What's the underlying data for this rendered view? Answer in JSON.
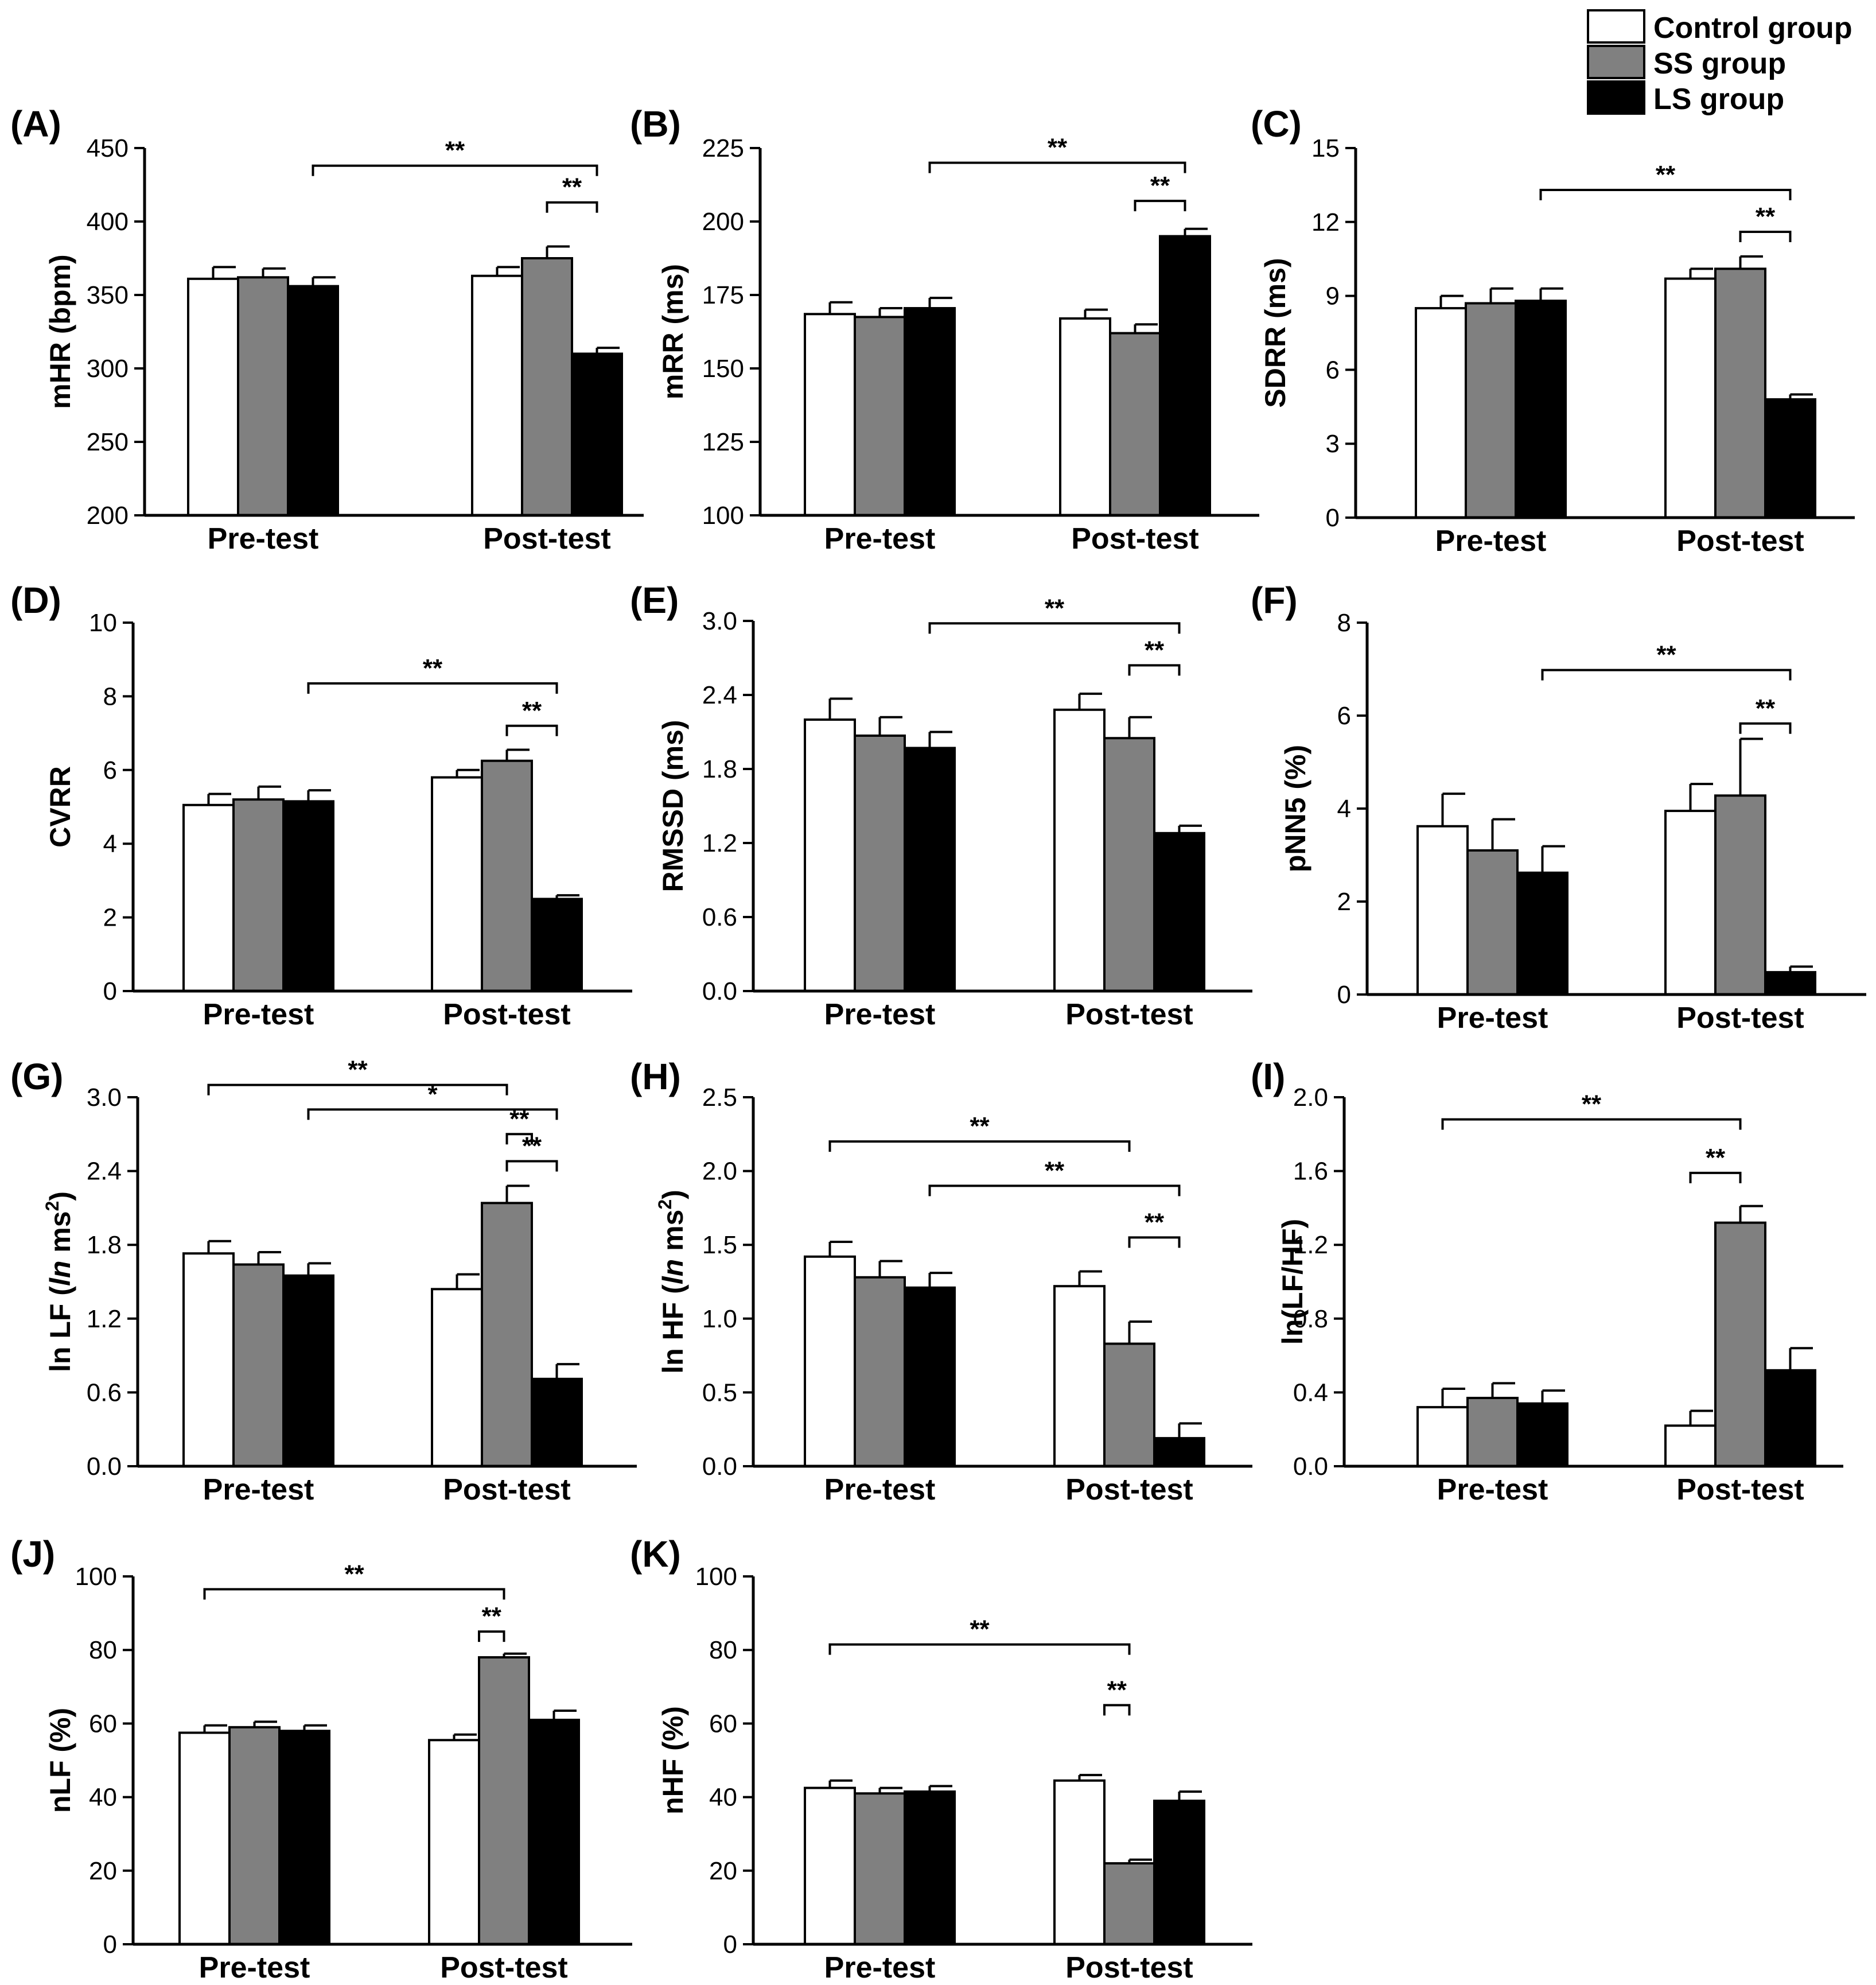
{
  "legend": {
    "entries": [
      {
        "label": "Control group",
        "color": "#ffffff"
      },
      {
        "label": "SS group",
        "color": "#808080"
      },
      {
        "label": "LS group",
        "color": "#000000"
      }
    ]
  },
  "chart_data": [
    {
      "id": "A",
      "panel_label": "(A)",
      "type": "bar",
      "ylabel": "mHR (bpm)",
      "yticks": [
        "200",
        "250",
        "300",
        "350",
        "400",
        "450"
      ],
      "ylim": [
        200,
        450
      ],
      "categories": [
        "Pre-test",
        "Post-test"
      ],
      "series": [
        {
          "name": "Control group",
          "values": [
            361,
            363
          ],
          "errors": [
            8,
            6
          ]
        },
        {
          "name": "SS group",
          "values": [
            362,
            375
          ],
          "errors": [
            6,
            8
          ]
        },
        {
          "name": "LS group",
          "values": [
            356,
            310
          ],
          "errors": [
            6,
            4
          ]
        }
      ],
      "brackets": [
        {
          "from": [
            0,
            2
          ],
          "to": [
            1,
            2
          ],
          "label": "**",
          "y": 438
        },
        {
          "from": [
            1,
            1
          ],
          "to": [
            1,
            2
          ],
          "label": "**",
          "y": 413
        }
      ]
    },
    {
      "id": "B",
      "panel_label": "(B)",
      "type": "bar",
      "ylabel": "mRR (ms)",
      "yticks": [
        "100",
        "125",
        "150",
        "175",
        "200",
        "225"
      ],
      "ylim": [
        100,
        225
      ],
      "categories": [
        "Pre-test",
        "Post-test"
      ],
      "series": [
        {
          "name": "Control group",
          "values": [
            168.5,
            167
          ],
          "errors": [
            4,
            3
          ]
        },
        {
          "name": "SS group",
          "values": [
            167.5,
            162
          ],
          "errors": [
            3,
            3
          ]
        },
        {
          "name": "LS group",
          "values": [
            170.5,
            195
          ],
          "errors": [
            3.5,
            2.5
          ]
        }
      ],
      "brackets": [
        {
          "from": [
            0,
            2
          ],
          "to": [
            1,
            2
          ],
          "label": "**",
          "y": 220
        },
        {
          "from": [
            1,
            1
          ],
          "to": [
            1,
            2
          ],
          "label": "**",
          "y": 207
        }
      ]
    },
    {
      "id": "C",
      "panel_label": "(C)",
      "type": "bar",
      "ylabel": "SDRR (ms)",
      "yticks": [
        "0",
        "3",
        "6",
        "9",
        "12",
        "15"
      ],
      "ylim": [
        0,
        15
      ],
      "categories": [
        "Pre-test",
        "Post-test"
      ],
      "series": [
        {
          "name": "Control group",
          "values": [
            8.5,
            9.7
          ],
          "errors": [
            0.5,
            0.4
          ]
        },
        {
          "name": "SS group",
          "values": [
            8.7,
            10.1
          ],
          "errors": [
            0.6,
            0.5
          ]
        },
        {
          "name": "LS group",
          "values": [
            8.8,
            4.8
          ],
          "errors": [
            0.5,
            0.2
          ]
        }
      ],
      "brackets": [
        {
          "from": [
            0,
            2
          ],
          "to": [
            1,
            2
          ],
          "label": "**",
          "y": 13.3
        },
        {
          "from": [
            1,
            1
          ],
          "to": [
            1,
            2
          ],
          "label": "**",
          "y": 11.6
        }
      ]
    },
    {
      "id": "D",
      "panel_label": "(D)",
      "type": "bar",
      "ylabel": "CVRR",
      "yticks": [
        "0",
        "2",
        "4",
        "6",
        "8",
        "10"
      ],
      "ylim": [
        0,
        10
      ],
      "categories": [
        "Pre-test",
        "Post-test"
      ],
      "series": [
        {
          "name": "Control group",
          "values": [
            5.05,
            5.8
          ],
          "errors": [
            0.3,
            0.2
          ]
        },
        {
          "name": "SS group",
          "values": [
            5.2,
            6.25
          ],
          "errors": [
            0.35,
            0.3
          ]
        },
        {
          "name": "LS group",
          "values": [
            5.15,
            2.5
          ],
          "errors": [
            0.3,
            0.1
          ]
        }
      ],
      "brackets": [
        {
          "from": [
            0,
            2
          ],
          "to": [
            1,
            2
          ],
          "label": "**",
          "y": 8.35
        },
        {
          "from": [
            1,
            1
          ],
          "to": [
            1,
            2
          ],
          "label": "**",
          "y": 7.2
        }
      ]
    },
    {
      "id": "E",
      "panel_label": "(E)",
      "type": "bar",
      "ylabel": "RMSSD (ms)",
      "yticks": [
        "0.0",
        "0.6",
        "1.2",
        "1.8",
        "2.4",
        "3.0"
      ],
      "ylim": [
        0,
        3.0
      ],
      "categories": [
        "Pre-test",
        "Post-test"
      ],
      "series": [
        {
          "name": "Control group",
          "values": [
            2.2,
            2.28
          ],
          "errors": [
            0.17,
            0.13
          ]
        },
        {
          "name": "SS group",
          "values": [
            2.07,
            2.05
          ],
          "errors": [
            0.15,
            0.17
          ]
        },
        {
          "name": "LS group",
          "values": [
            1.97,
            1.28
          ],
          "errors": [
            0.13,
            0.06
          ]
        }
      ],
      "brackets": [
        {
          "from": [
            0,
            2
          ],
          "to": [
            1,
            2
          ],
          "label": "**",
          "y": 2.98
        },
        {
          "from": [
            1,
            1
          ],
          "to": [
            1,
            2
          ],
          "label": "**",
          "y": 2.64
        }
      ]
    },
    {
      "id": "F",
      "panel_label": "(F)",
      "type": "bar",
      "ylabel": "pNN5 (%)",
      "yticks": [
        "0",
        "2",
        "4",
        "6",
        "8"
      ],
      "ylim": [
        0,
        8
      ],
      "categories": [
        "Pre-test",
        "Post-test"
      ],
      "series": [
        {
          "name": "Control group",
          "values": [
            3.62,
            3.95
          ],
          "errors": [
            0.7,
            0.58
          ]
        },
        {
          "name": "SS group",
          "values": [
            3.1,
            4.28
          ],
          "errors": [
            0.67,
            1.22
          ]
        },
        {
          "name": "LS group",
          "values": [
            2.62,
            0.48
          ],
          "errors": [
            0.57,
            0.12
          ]
        }
      ],
      "brackets": [
        {
          "from": [
            0,
            2
          ],
          "to": [
            1,
            2
          ],
          "label": "**",
          "y": 6.98
        },
        {
          "from": [
            1,
            1
          ],
          "to": [
            1,
            2
          ],
          "label": "**",
          "y": 5.83
        }
      ]
    },
    {
      "id": "G",
      "panel_label": "(G)",
      "type": "bar",
      "ylabel": "ln LF (",
      "ylabel_italic": "ln",
      "ylabel_tail": " ms",
      "ylabel_sup": "2",
      "ylabel_close": ")",
      "yticks": [
        "0.0",
        "0.6",
        "1.2",
        "1.8",
        "2.4",
        "3.0"
      ],
      "ylim": [
        0,
        3.0
      ],
      "categories": [
        "Pre-test",
        "Post-test"
      ],
      "series": [
        {
          "name": "Control group",
          "values": [
            1.73,
            1.44
          ],
          "errors": [
            0.1,
            0.12
          ]
        },
        {
          "name": "SS group",
          "values": [
            1.64,
            2.14
          ],
          "errors": [
            0.1,
            0.14
          ]
        },
        {
          "name": "LS group",
          "values": [
            1.55,
            0.71
          ],
          "errors": [
            0.1,
            0.12
          ]
        }
      ],
      "brackets": [
        {
          "from": [
            0,
            0
          ],
          "to": [
            1,
            1
          ],
          "label": "**",
          "y": 3.1
        },
        {
          "from": [
            0,
            2
          ],
          "to": [
            1,
            2
          ],
          "label": "*",
          "y": 2.9
        },
        {
          "from": [
            1,
            1
          ],
          "to": [
            1,
            1.5
          ],
          "label": "**",
          "y": 2.7
        },
        {
          "from": [
            1,
            1
          ],
          "to": [
            1,
            2
          ],
          "label": "**",
          "y": 2.48
        }
      ]
    },
    {
      "id": "H",
      "panel_label": "(H)",
      "type": "bar",
      "ylabel": "ln HF (",
      "ylabel_italic": "ln",
      "ylabel_tail": " ms",
      "ylabel_sup": "2",
      "ylabel_close": ")",
      "yticks": [
        "0.0",
        "0.5",
        "1.0",
        "1.5",
        "2.0",
        "2.5"
      ],
      "ylim": [
        0,
        2.5
      ],
      "categories": [
        "Pre-test",
        "Post-test"
      ],
      "series": [
        {
          "name": "Control group",
          "values": [
            1.42,
            1.22
          ],
          "errors": [
            0.1,
            0.1
          ]
        },
        {
          "name": "SS group",
          "values": [
            1.28,
            0.83
          ],
          "errors": [
            0.11,
            0.15
          ]
        },
        {
          "name": "LS group",
          "values": [
            1.21,
            0.19
          ],
          "errors": [
            0.1,
            0.1
          ]
        }
      ],
      "brackets": [
        {
          "from": [
            0,
            0
          ],
          "to": [
            1,
            1
          ],
          "label": "**",
          "y": 2.2
        },
        {
          "from": [
            0,
            2
          ],
          "to": [
            1,
            2
          ],
          "label": "**",
          "y": 1.9
        },
        {
          "from": [
            1,
            1
          ],
          "to": [
            1,
            2
          ],
          "label": "**",
          "y": 1.55
        }
      ]
    },
    {
      "id": "I",
      "panel_label": "(I)",
      "type": "bar",
      "ylabel": "ln(LF/HF)",
      "yticks": [
        "0.0",
        "0.4",
        "0.8",
        "1.2",
        "1.6",
        "2.0"
      ],
      "ylim": [
        0,
        2.0
      ],
      "categories": [
        "Pre-test",
        "Post-test"
      ],
      "series": [
        {
          "name": "Control group",
          "values": [
            0.32,
            0.22
          ],
          "errors": [
            0.1,
            0.08
          ]
        },
        {
          "name": "SS group",
          "values": [
            0.37,
            1.32
          ],
          "errors": [
            0.08,
            0.09
          ]
        },
        {
          "name": "LS group",
          "values": [
            0.34,
            0.52
          ],
          "errors": [
            0.07,
            0.12
          ]
        }
      ],
      "brackets": [
        {
          "from": [
            0,
            0
          ],
          "to": [
            1,
            1
          ],
          "label": "**",
          "y": 1.88
        },
        {
          "from": [
            1,
            0
          ],
          "to": [
            1,
            1
          ],
          "label": "**",
          "y": 1.59
        }
      ]
    },
    {
      "id": "J",
      "panel_label": "(J)",
      "type": "bar",
      "ylabel": "nLF (%)",
      "yticks": [
        "0",
        "20",
        "40",
        "60",
        "80",
        "100"
      ],
      "ylim": [
        0,
        100
      ],
      "categories": [
        "Pre-test",
        "Post-test"
      ],
      "series": [
        {
          "name": "Control group",
          "values": [
            57.5,
            55.5
          ],
          "errors": [
            2,
            1.5
          ]
        },
        {
          "name": "SS group",
          "values": [
            59,
            78
          ],
          "errors": [
            1.5,
            1
          ]
        },
        {
          "name": "LS group",
          "values": [
            58,
            61
          ],
          "errors": [
            1.5,
            2.5
          ]
        }
      ],
      "brackets": [
        {
          "from": [
            0,
            0
          ],
          "to": [
            1,
            1
          ],
          "label": "**",
          "y": 96.5
        },
        {
          "from": [
            1,
            0.5
          ],
          "to": [
            1,
            1
          ],
          "label": "**",
          "y": 85
        }
      ]
    },
    {
      "id": "K",
      "panel_label": "(K)",
      "type": "bar",
      "ylabel": "nHF (%)",
      "yticks": [
        "0",
        "20",
        "40",
        "60",
        "80",
        "100"
      ],
      "ylim": [
        0,
        100
      ],
      "categories": [
        "Pre-test",
        "Post-test"
      ],
      "series": [
        {
          "name": "Control group",
          "values": [
            42.5,
            44.5
          ],
          "errors": [
            2,
            1.5
          ]
        },
        {
          "name": "SS group",
          "values": [
            41,
            22
          ],
          "errors": [
            1.5,
            1
          ]
        },
        {
          "name": "LS group",
          "values": [
            41.5,
            39
          ],
          "errors": [
            1.5,
            2.5
          ]
        }
      ],
      "brackets": [
        {
          "from": [
            0,
            0
          ],
          "to": [
            1,
            1
          ],
          "label": "**",
          "y": 81.5
        },
        {
          "from": [
            1,
            0.5
          ],
          "to": [
            1,
            1
          ],
          "label": "**",
          "y": 65
        }
      ]
    }
  ]
}
